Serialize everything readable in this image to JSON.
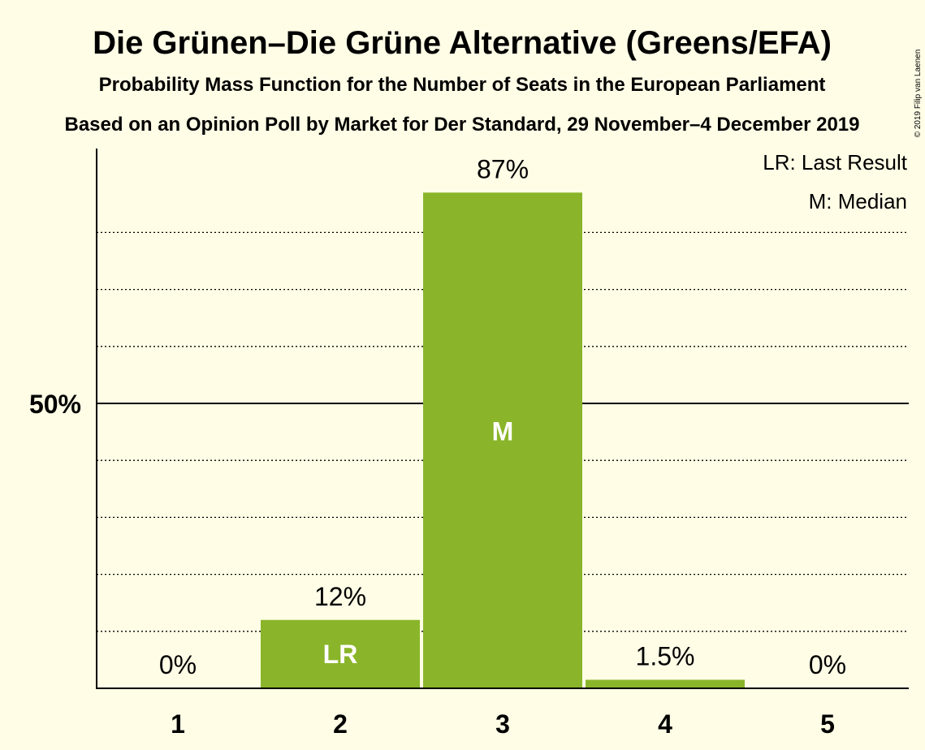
{
  "chart_data": {
    "type": "bar",
    "title": "Die Grünen–Die Grüne Alternative (Greens/EFA)",
    "subtitle": "Probability Mass Function for the Number of Seats in the European Parliament",
    "subtitle2": "Based on an Opinion Poll by Market for Der Standard, 29 November–4 December 2019",
    "copyright": "© 2019 Filip van Laenen",
    "categories": [
      "1",
      "2",
      "3",
      "4",
      "5"
    ],
    "values": [
      0,
      12,
      87,
      1.5,
      0
    ],
    "value_labels": [
      "0%",
      "12%",
      "87%",
      "1.5%",
      "0%"
    ],
    "bar_markers": [
      "",
      "LR",
      "M",
      "",
      ""
    ],
    "ylim": [
      0,
      95
    ],
    "y_tick_value": 50,
    "y_tick_label": "50%",
    "dotted_grid_values": [
      10,
      20,
      30,
      40,
      60,
      70,
      80
    ],
    "legend": [
      "LR: Last Result",
      "M: Median"
    ],
    "legend_position": "top-right",
    "bar_color": "#8ab52a",
    "background_color": "#fffde6"
  }
}
